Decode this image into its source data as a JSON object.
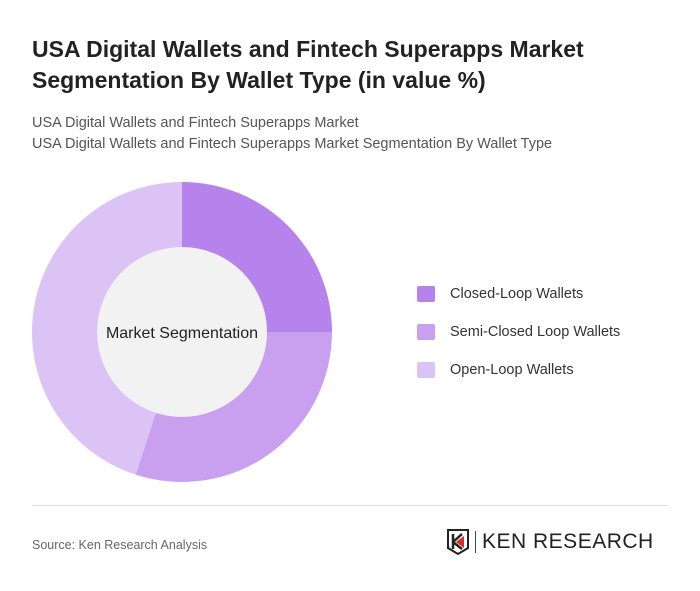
{
  "title": "USA Digital Wallets and Fintech Superapps Market Segmentation By Wallet Type (in value %)",
  "subtitle_1": "USA Digital Wallets and Fintech Superapps Market",
  "subtitle_2": "USA Digital Wallets and Fintech Superapps Market Segmentation By Wallet Type",
  "source": "Source: Ken Research Analysis",
  "logo_text": "KEN RESEARCH",
  "chart_data": {
    "type": "pie",
    "variant": "donut",
    "center_label": "Market Segmentation",
    "categories": [
      "Closed-Loop Wallets",
      "Semi-Closed Loop Wallets",
      "Open-Loop Wallets"
    ],
    "values": [
      25,
      30,
      45
    ],
    "colors": [
      "#b682ec",
      "#c9a0f0",
      "#dcc3f6"
    ],
    "center_color": "#f2f2f2",
    "legend_position": "right"
  }
}
